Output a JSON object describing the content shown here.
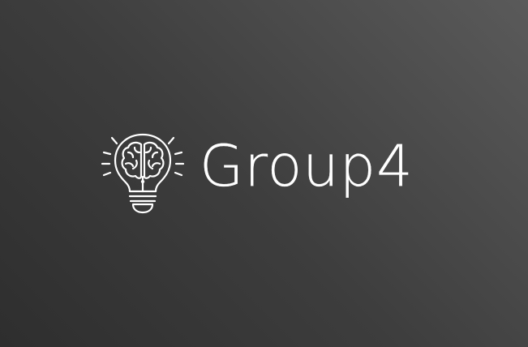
{
  "logo": {
    "wordmark": "Group4",
    "icon": "lightbulb-brain-icon"
  },
  "colors": {
    "background_light": "#5a5a5a",
    "background_dark": "#2e2e2e",
    "foreground": "#ffffff"
  }
}
